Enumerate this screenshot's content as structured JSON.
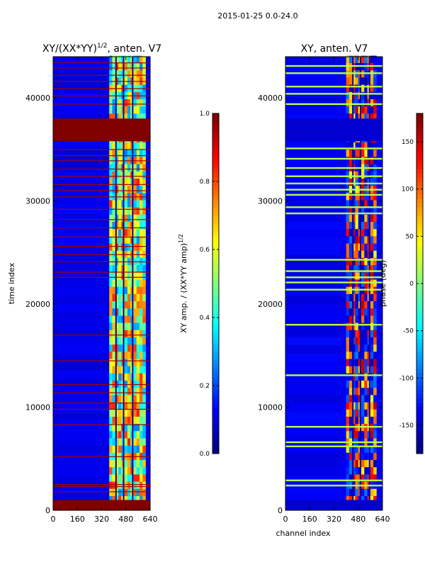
{
  "figure": {
    "suptitle": "2015-01-25 0.0-24.0",
    "shared_xlabel": "channel index"
  },
  "colormap": "jet",
  "chart_data": [
    {
      "type": "heatmap",
      "title": "XY/(XX*YY)^1/2, anten. V7",
      "title_main": "XY/(XX*YY)",
      "title_exp": "1/2",
      "title_suffix": ", anten. V7",
      "xlabel": "",
      "ylabel": "time index",
      "xlim": [
        0,
        640
      ],
      "ylim": [
        0,
        44000
      ],
      "xticks": [
        "0",
        "160",
        "320",
        "480",
        "640"
      ],
      "yticks": [
        "0",
        "10000",
        "20000",
        "30000",
        "40000"
      ],
      "colorbar": {
        "label": "XY amp. / (XX*YY amp)^1/2",
        "label_main": "XY amp. / (XX*YY amp)",
        "label_exp": "1/2",
        "vmin": 0.0,
        "vmax": 1.0,
        "ticks": [
          "0.0",
          "0.2",
          "0.4",
          "0.6",
          "0.8",
          "1.0"
        ]
      },
      "background_value": 0.1,
      "active_channel_range": [
        370,
        600
      ],
      "saturated_time_bands": [
        [
          0,
          1000
        ],
        [
          35800,
          38000
        ]
      ],
      "hot_rows": [
        1800,
        2300,
        2500,
        5200,
        8300,
        9800,
        10400,
        11400,
        12200,
        14500,
        17000,
        22600,
        23100,
        24100,
        24800,
        25600,
        26500,
        27400,
        28200,
        29200,
        30400,
        31000,
        31600,
        32400,
        33100,
        33900,
        34400,
        35000,
        39400,
        40200,
        40900,
        41600,
        42200,
        42900,
        43400
      ]
    },
    {
      "type": "heatmap",
      "title": "XY, anten. V7",
      "xlabel": "channel index",
      "ylabel": "",
      "xlim": [
        0,
        640
      ],
      "ylim": [
        0,
        44000
      ],
      "xticks": [
        "0",
        "160",
        "320",
        "480",
        "640"
      ],
      "yticks": [
        "0",
        "10000",
        "20000",
        "30000",
        "40000"
      ],
      "colorbar": {
        "label": "phase (deg)",
        "vmin": -180,
        "vmax": 180,
        "ticks": [
          "-150",
          "-100",
          "-50",
          "0",
          "50",
          "100",
          "150"
        ]
      },
      "background_value": -140,
      "active_channel_range": [
        400,
        600
      ],
      "low_time_bands": [
        [
          0,
          1000
        ],
        [
          35800,
          38000
        ]
      ],
      "flag_rows": [
        2400,
        2900,
        6200,
        6600,
        8100,
        13100,
        18000,
        21400,
        22100,
        22600,
        23200,
        24300,
        28800,
        29400,
        30600,
        31100,
        31700,
        32400,
        33200,
        34100,
        35100,
        39400,
        40400,
        41100,
        42400,
        43100
      ]
    }
  ]
}
